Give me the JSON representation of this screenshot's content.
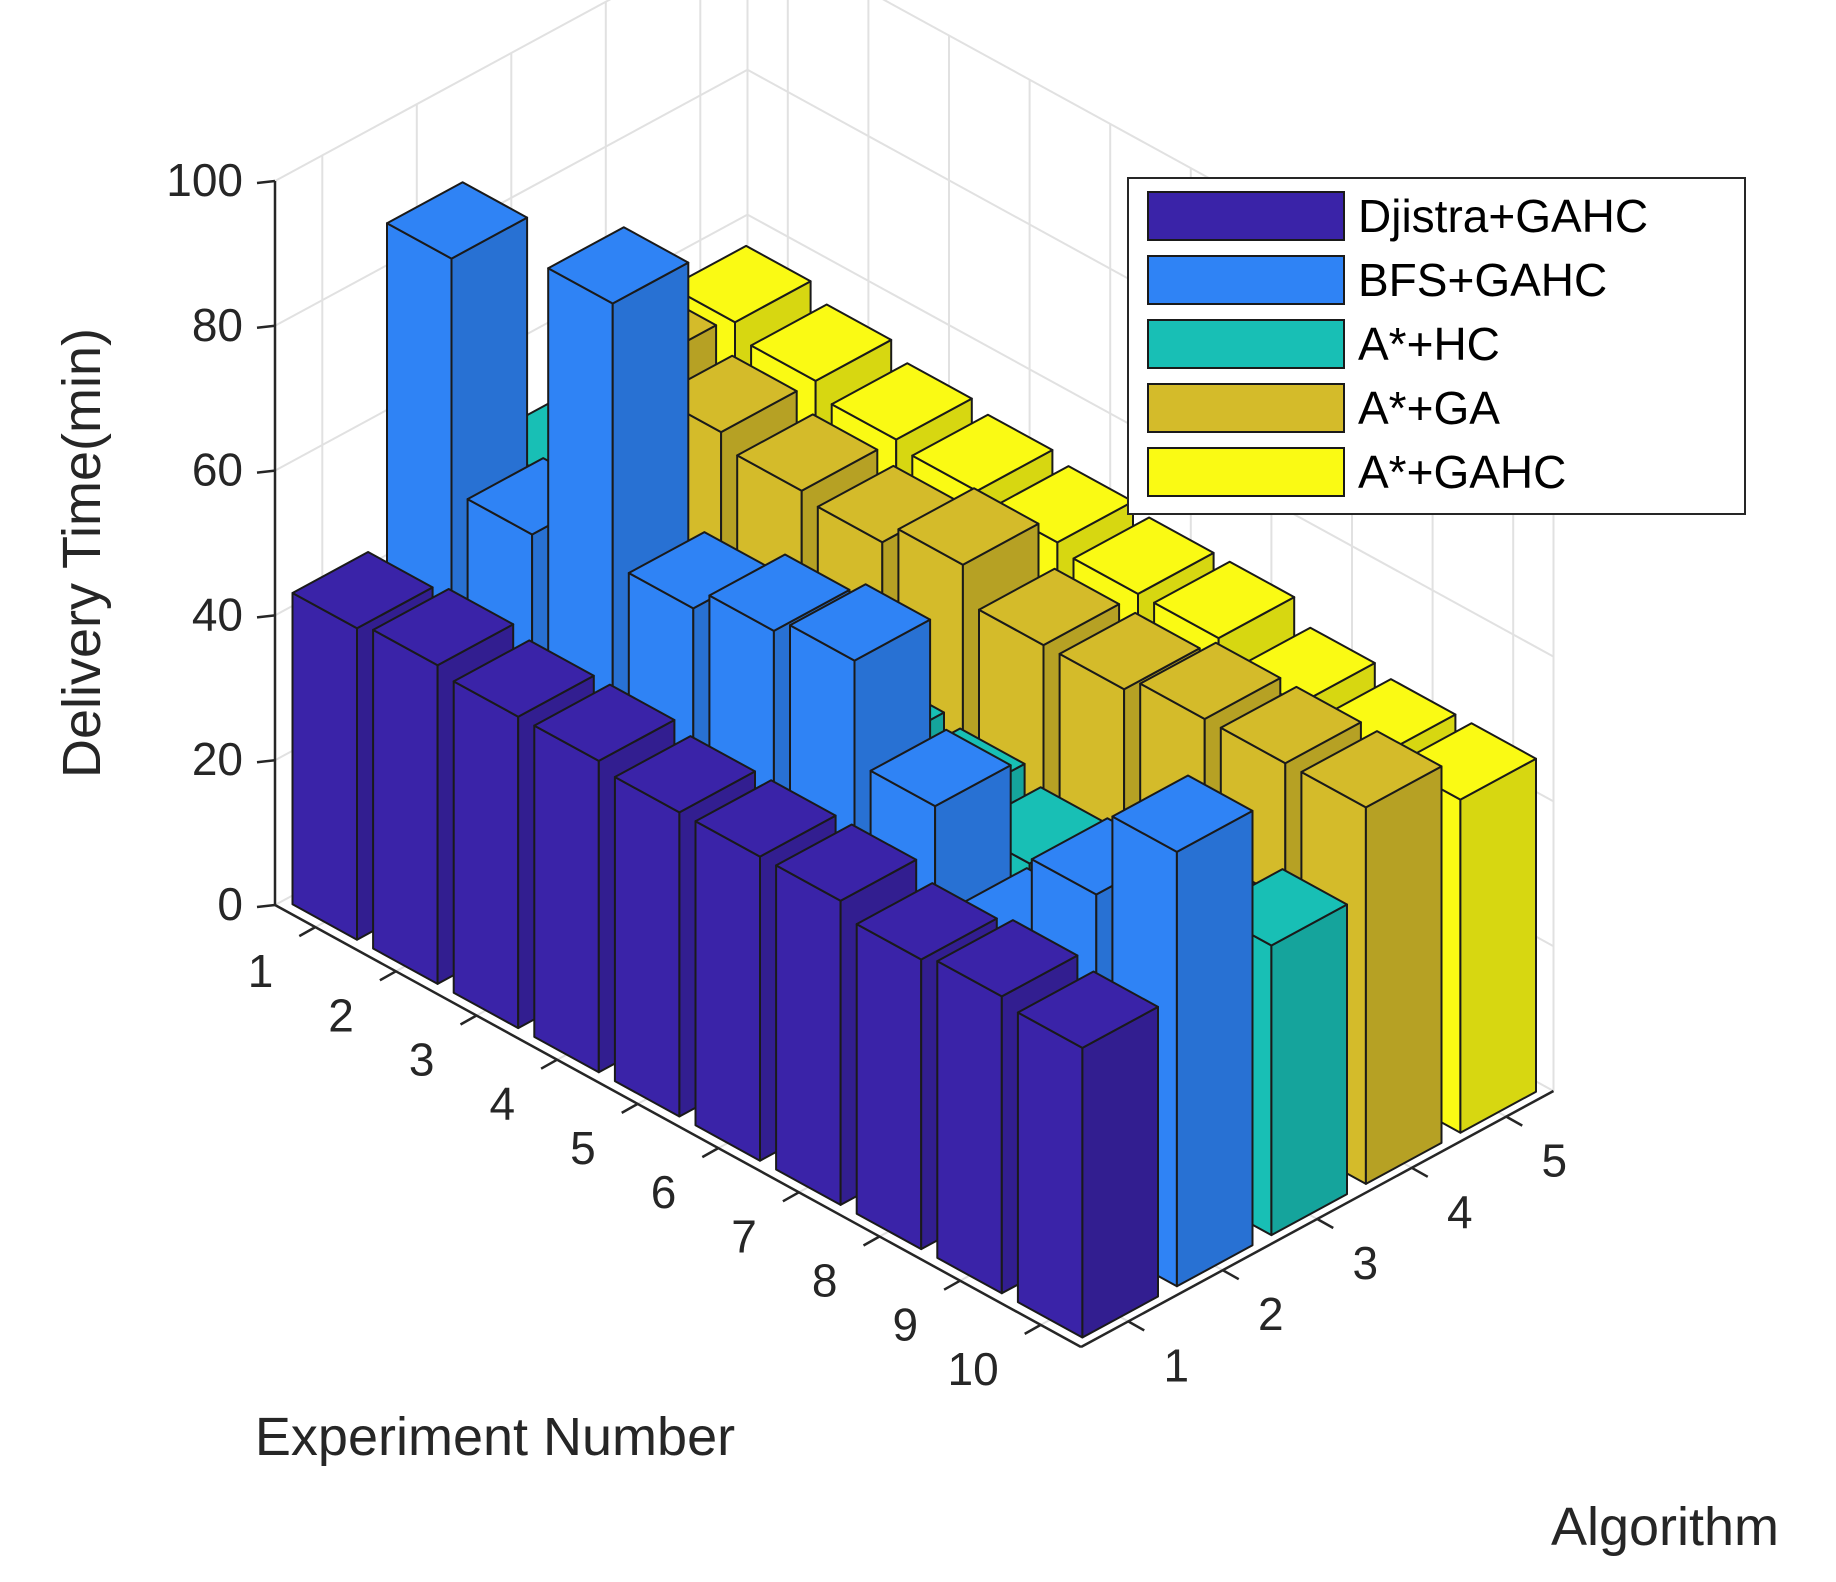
{
  "chart_data": {
    "type": "bar3d",
    "title": "",
    "xlabel": "Experiment Number",
    "ylabel": "Algorithm",
    "zlabel": "Delivery Time(min)",
    "x_ticks": [
      "1",
      "2",
      "3",
      "4",
      "5",
      "6",
      "7",
      "8",
      "9",
      "10"
    ],
    "y_ticks": [
      "1",
      "2",
      "3",
      "4",
      "5"
    ],
    "z_ticks": [
      "0",
      "20",
      "40",
      "60",
      "80",
      "100"
    ],
    "zlim": [
      0,
      100
    ],
    "grid": true,
    "legend_position": "top-right",
    "series": [
      {
        "name": "Djistra+GAHC",
        "color": "#3a23a8",
        "values": [
          43,
          44,
          43,
          43,
          42,
          42,
          42,
          40,
          41,
          40
        ]
      },
      {
        "name": "BFS+GAHC",
        "color": "#2f83f5",
        "values": [
          87,
          55,
          93,
          57,
          60,
          62,
          48,
          35,
          48,
          60
        ]
      },
      {
        "name": "A*+HC",
        "color": "#18bfb5",
        "values": [
          50,
          40,
          40,
          40,
          36,
          35,
          33,
          33,
          36,
          40
        ]
      },
      {
        "name": "A*+GA",
        "color": "#d4bb2a",
        "values": [
          58,
          55,
          53,
          52,
          55,
          50,
          50,
          52,
          52,
          52
        ]
      },
      {
        "name": "A*+GAHC",
        "color": "#fafa14",
        "values": [
          57,
          55,
          53,
          52,
          51,
          50,
          50,
          47,
          46,
          46
        ]
      }
    ]
  }
}
